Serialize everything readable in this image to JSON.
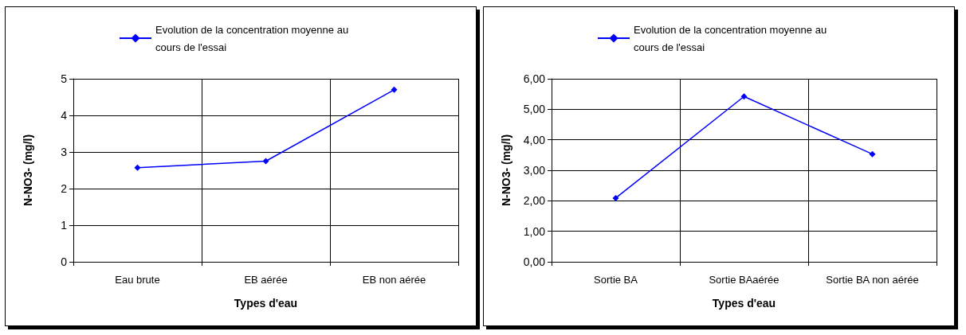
{
  "chart_data": [
    {
      "type": "line",
      "xlabel": "Types d'eau",
      "ylabel": "N-NO3- (mg/l)",
      "categories": [
        "Eau brute",
        "EB aérée",
        "EB non aérée"
      ],
      "series": [
        {
          "name": "Evolution de la concentration moyenne au cours de l'essai",
          "color": "#0000ff",
          "values": [
            2.57,
            2.75,
            4.7
          ]
        }
      ],
      "ylim": [
        0,
        5
      ],
      "yticks": [
        0,
        1,
        2,
        3,
        4,
        5
      ],
      "grid": true,
      "legend": "top",
      "marker": "diamond",
      "line_style": "solid"
    },
    {
      "type": "line",
      "xlabel": "Types d'eau",
      "ylabel": "N-NO3- (mg/l)",
      "categories": [
        "Sortie BA",
        "Sortie BAaérée",
        "Sortie BA non aérée"
      ],
      "series": [
        {
          "name": "Evolution de la concentration moyenne au cours de l'essai",
          "color": "#0000ff",
          "values": [
            2.09,
            5.42,
            3.53
          ]
        }
      ],
      "ylim": [
        0,
        6
      ],
      "yticks": [
        {
          "value": 0,
          "label": "0,00"
        },
        {
          "value": 1,
          "label": "1,00"
        },
        {
          "value": 2,
          "label": "2,00"
        },
        {
          "value": 3,
          "label": "3,00"
        },
        {
          "value": 4,
          "label": "4,00"
        },
        {
          "value": 5,
          "label": "5,00"
        },
        {
          "value": 6,
          "label": "6,00"
        }
      ],
      "grid": true,
      "legend": "top",
      "marker": "diamond",
      "line_style": "solid"
    }
  ]
}
